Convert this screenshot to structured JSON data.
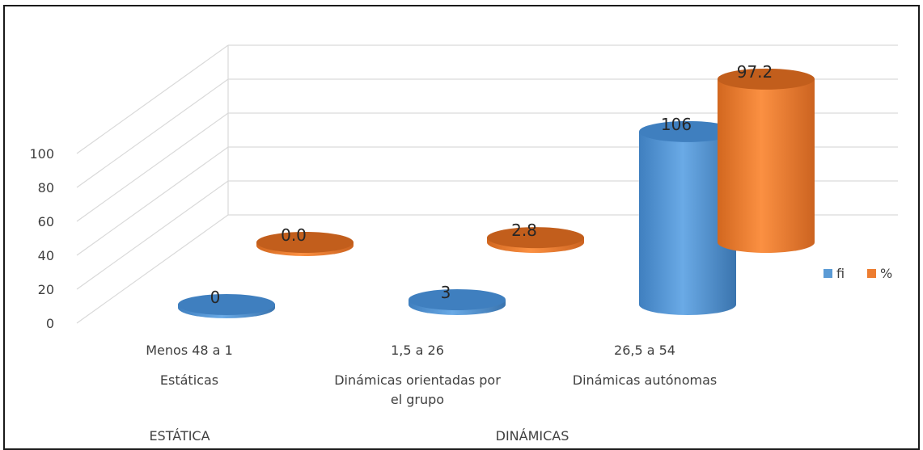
{
  "chart_data": {
    "type": "bar",
    "style": "3d-cylinder",
    "y_ticks": [
      "0",
      "20",
      "40",
      "60",
      "80",
      "100"
    ],
    "ylim": [
      0,
      100
    ],
    "categories": [
      {
        "range": "Menos 48 a 1",
        "type": "Estáticas",
        "group": "ESTÁTICA"
      },
      {
        "range": "1,5 a 26",
        "type": "Dinámicas orientadas por el grupo",
        "group": "DINÁMICAS"
      },
      {
        "range": "26,5 a 54",
        "type": "Dinámicas autónomas",
        "group": "DINÁMICAS"
      }
    ],
    "series": [
      {
        "name": "fi",
        "color": "#5b9bd5",
        "values": [
          0,
          3,
          106
        ],
        "labels": [
          "0",
          "3",
          "106"
        ]
      },
      {
        "name": "%",
        "color": "#ed7d31",
        "values": [
          0.0,
          2.8,
          97.2
        ],
        "labels": [
          "0.0",
          "2.8",
          "97.2"
        ]
      }
    ],
    "legend_position": "right",
    "grid": true
  }
}
